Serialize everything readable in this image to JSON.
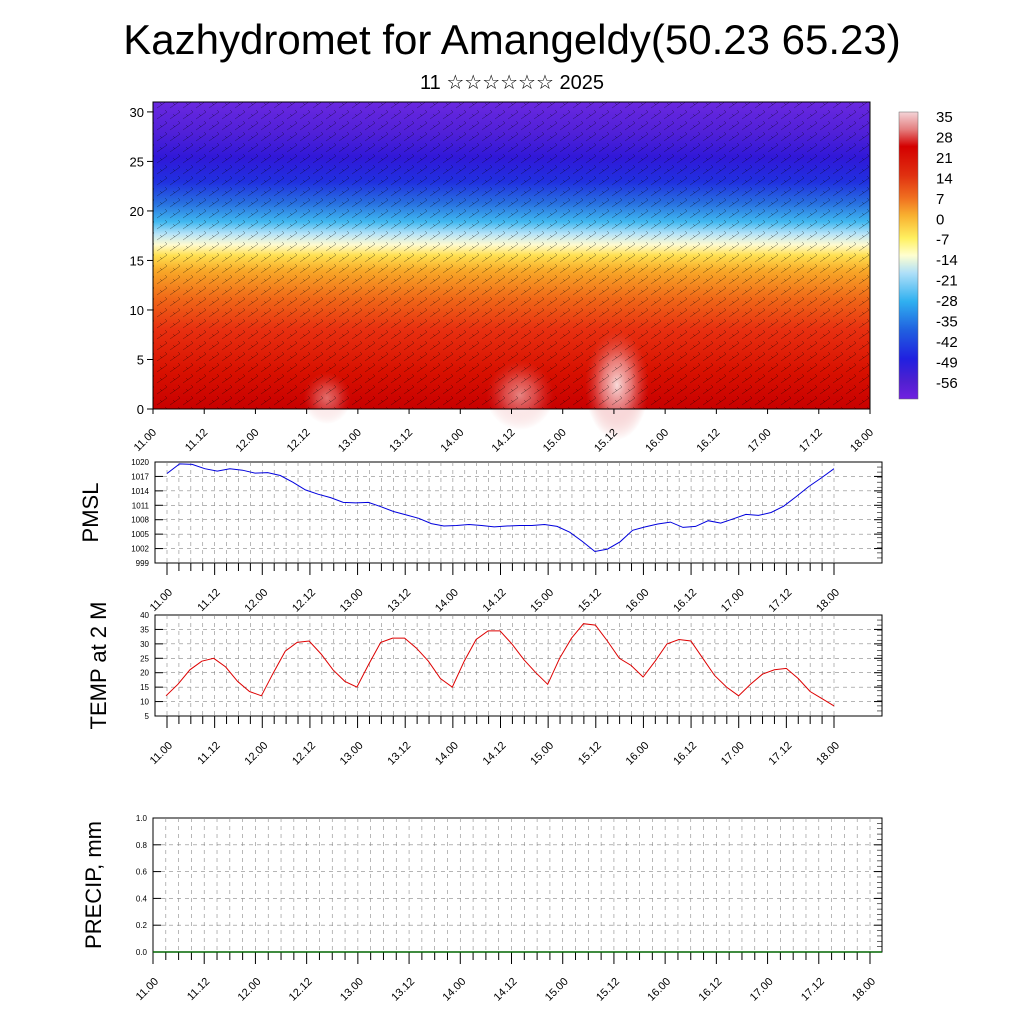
{
  "title": "Kazhydromet for Amangeldy(50.23 65.23)",
  "subtitle": "11 ☆☆☆☆☆☆ 2025",
  "colors": {
    "pmsl_line": "#0000dd",
    "temp_line": "#dd0000",
    "precip_line": "#006600",
    "cross_section_ramp": [
      "#f4d4d8",
      "#e89090",
      "#d40000",
      "#e03010",
      "#f07020",
      "#f8b030",
      "#fff060",
      "#ffffd0",
      "#b0e0f8",
      "#30b0f0",
      "#2060e0",
      "#2020e0",
      "#5020d0",
      "#7020e0"
    ]
  },
  "chart_data": [
    {
      "type": "heatmap",
      "name": "vertical cross-section (temperature shading with wind barbs)",
      "x_tick_labels": [
        "11.00",
        "11.12",
        "12.00",
        "12.12",
        "13.00",
        "13.12",
        "14.00",
        "14.12",
        "15.00",
        "15.12",
        "16.00",
        "16.12",
        "17.00",
        "17.12",
        "18.00"
      ],
      "y_ticks": [
        0,
        5,
        10,
        15,
        20,
        25,
        30
      ],
      "ylim": [
        0,
        31
      ],
      "colorbar_labels": [
        "35",
        "28",
        "21",
        "14",
        "7",
        "0",
        "-7",
        "-14",
        "-21",
        "-28",
        "-35",
        "-42",
        "-49",
        "-56"
      ]
    },
    {
      "type": "line",
      "ylabel": "PMSL",
      "ylim": [
        999,
        1020
      ],
      "y_ticks": [
        999,
        1002,
        1005,
        1008,
        1011,
        1014,
        1017,
        1020
      ],
      "x_tick_labels": [
        "11.00",
        "11.12",
        "12.00",
        "12.12",
        "13.00",
        "13.12",
        "14.00",
        "14.12",
        "15.00",
        "15.12",
        "16.00",
        "16.12",
        "17.00",
        "17.12",
        "18.00"
      ],
      "values": [
        1017.6,
        1019.6,
        1019.5,
        1018.6,
        1018.1,
        1018.6,
        1018.3,
        1017.7,
        1017.8,
        1017.2,
        1015.8,
        1014.2,
        1013.3,
        1012.6,
        1011.6,
        1011.5,
        1011.6,
        1010.7,
        1009.7,
        1009.0,
        1008.3,
        1007.2,
        1006.7,
        1006.8,
        1007.0,
        1006.8,
        1006.5,
        1006.7,
        1006.8,
        1006.8,
        1007.0,
        1006.6,
        1005.4,
        1003.5,
        1001.4,
        1001.9,
        1003.4,
        1005.8,
        1006.5,
        1007.1,
        1007.5,
        1006.4,
        1006.6,
        1007.8,
        1007.3,
        1008.2,
        1009.1,
        1008.9,
        1009.5,
        1010.8,
        1012.8,
        1014.9,
        1016.7,
        1018.6
      ]
    },
    {
      "type": "line",
      "ylabel": "TEMP at 2 M",
      "ylim": [
        5,
        40
      ],
      "y_ticks": [
        5,
        10,
        15,
        20,
        25,
        30,
        35,
        40
      ],
      "x_tick_labels": [
        "11.00",
        "11.12",
        "12.00",
        "12.12",
        "13.00",
        "13.12",
        "14.00",
        "14.12",
        "15.00",
        "15.12",
        "16.00",
        "16.12",
        "17.00",
        "17.12",
        "18.00"
      ],
      "values": [
        12.0,
        16.0,
        21.0,
        24.0,
        25.0,
        22.0,
        17.0,
        13.5,
        12.0,
        20.0,
        27.5,
        30.5,
        31.0,
        26.5,
        21.0,
        17.0,
        15.0,
        23.0,
        30.5,
        32.0,
        32.0,
        28.5,
        24.0,
        18.0,
        15.0,
        24.0,
        31.5,
        34.5,
        34.5,
        30.0,
        24.5,
        20.0,
        16.0,
        25.0,
        32.0,
        37.0,
        36.5,
        31.0,
        25.0,
        22.5,
        18.5,
        24.0,
        30.0,
        31.5,
        31.0,
        25.0,
        19.0,
        15.0,
        12.0,
        16.0,
        19.5,
        21.0,
        21.5,
        18.0,
        13.5,
        11.0,
        8.5
      ]
    },
    {
      "type": "line",
      "ylabel": "PRECIP, mm",
      "ylim": [
        0,
        1
      ],
      "y_ticks": [
        "0.0",
        "0.2",
        "0.4",
        "0.6",
        "0.8",
        "1.0"
      ],
      "x_tick_labels": [
        "11.00",
        "11.12",
        "12.00",
        "12.12",
        "13.00",
        "13.12",
        "14.00",
        "14.12",
        "15.00",
        "15.12",
        "16.00",
        "16.12",
        "17.00",
        "17.12",
        "18.00"
      ],
      "values": [
        0,
        0,
        0,
        0,
        0,
        0,
        0,
        0,
        0,
        0,
        0,
        0,
        0,
        0,
        0
      ]
    }
  ]
}
